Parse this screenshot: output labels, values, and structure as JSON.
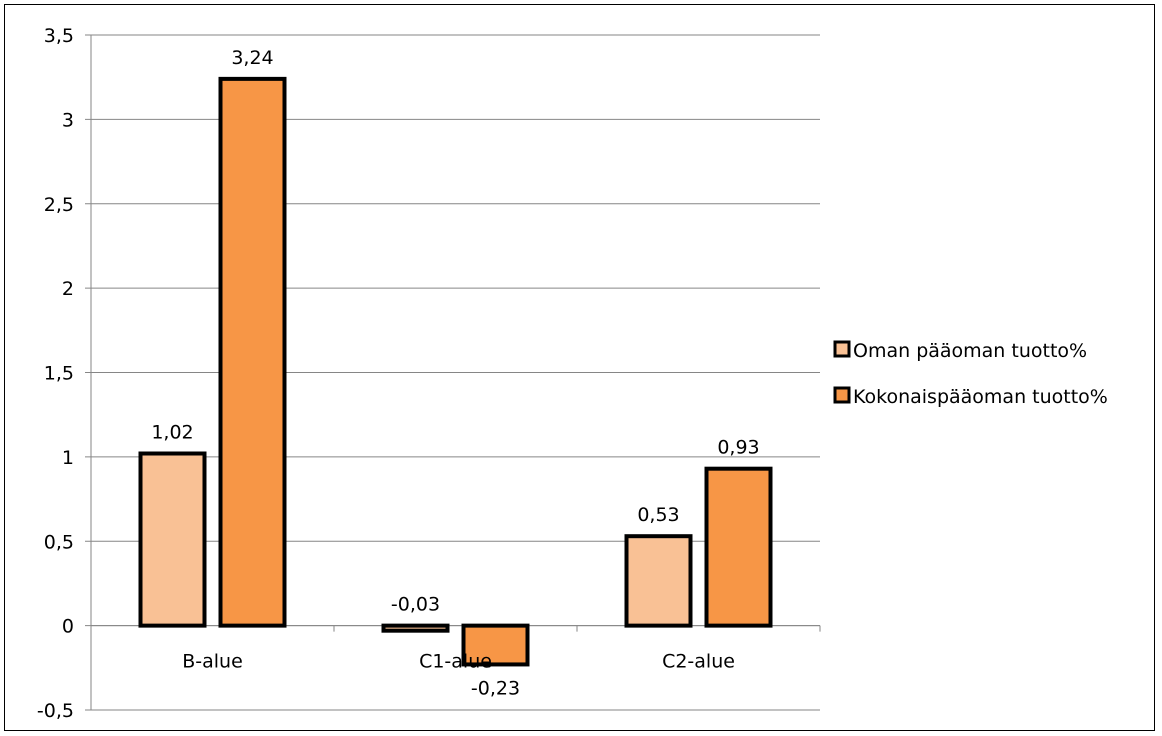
{
  "chart_data": {
    "type": "bar",
    "categories": [
      "B-alue",
      "C1-alue",
      "C2-alue"
    ],
    "series": [
      {
        "name": "Oman pääoman tuotto%",
        "values": [
          1.02,
          -0.03,
          0.53
        ],
        "labels": [
          "1,02",
          "-0,03",
          "0,53"
        ],
        "color": "#F9C195"
      },
      {
        "name": "Kokonaispääoman tuotto%",
        "values": [
          3.24,
          -0.23,
          0.93
        ],
        "labels": [
          "3,24",
          "-0,23",
          "0,93"
        ],
        "color": "#F79646"
      }
    ],
    "title": "",
    "xlabel": "",
    "ylabel": "",
    "ylim": [
      -0.5,
      3.5
    ],
    "yticks": [
      {
        "value": 3.5,
        "label": "3,5"
      },
      {
        "value": 3,
        "label": "3"
      },
      {
        "value": 2.5,
        "label": "2,5"
      },
      {
        "value": 2,
        "label": "2"
      },
      {
        "value": 1.5,
        "label": "1,5"
      },
      {
        "value": 1,
        "label": "1"
      },
      {
        "value": 0.5,
        "label": "0,5"
      },
      {
        "value": 0,
        "label": "0"
      },
      {
        "value": -0.5,
        "label": "-0,5"
      }
    ],
    "grid": true,
    "legend_position": "right",
    "bar_outline_color": "#000000"
  }
}
